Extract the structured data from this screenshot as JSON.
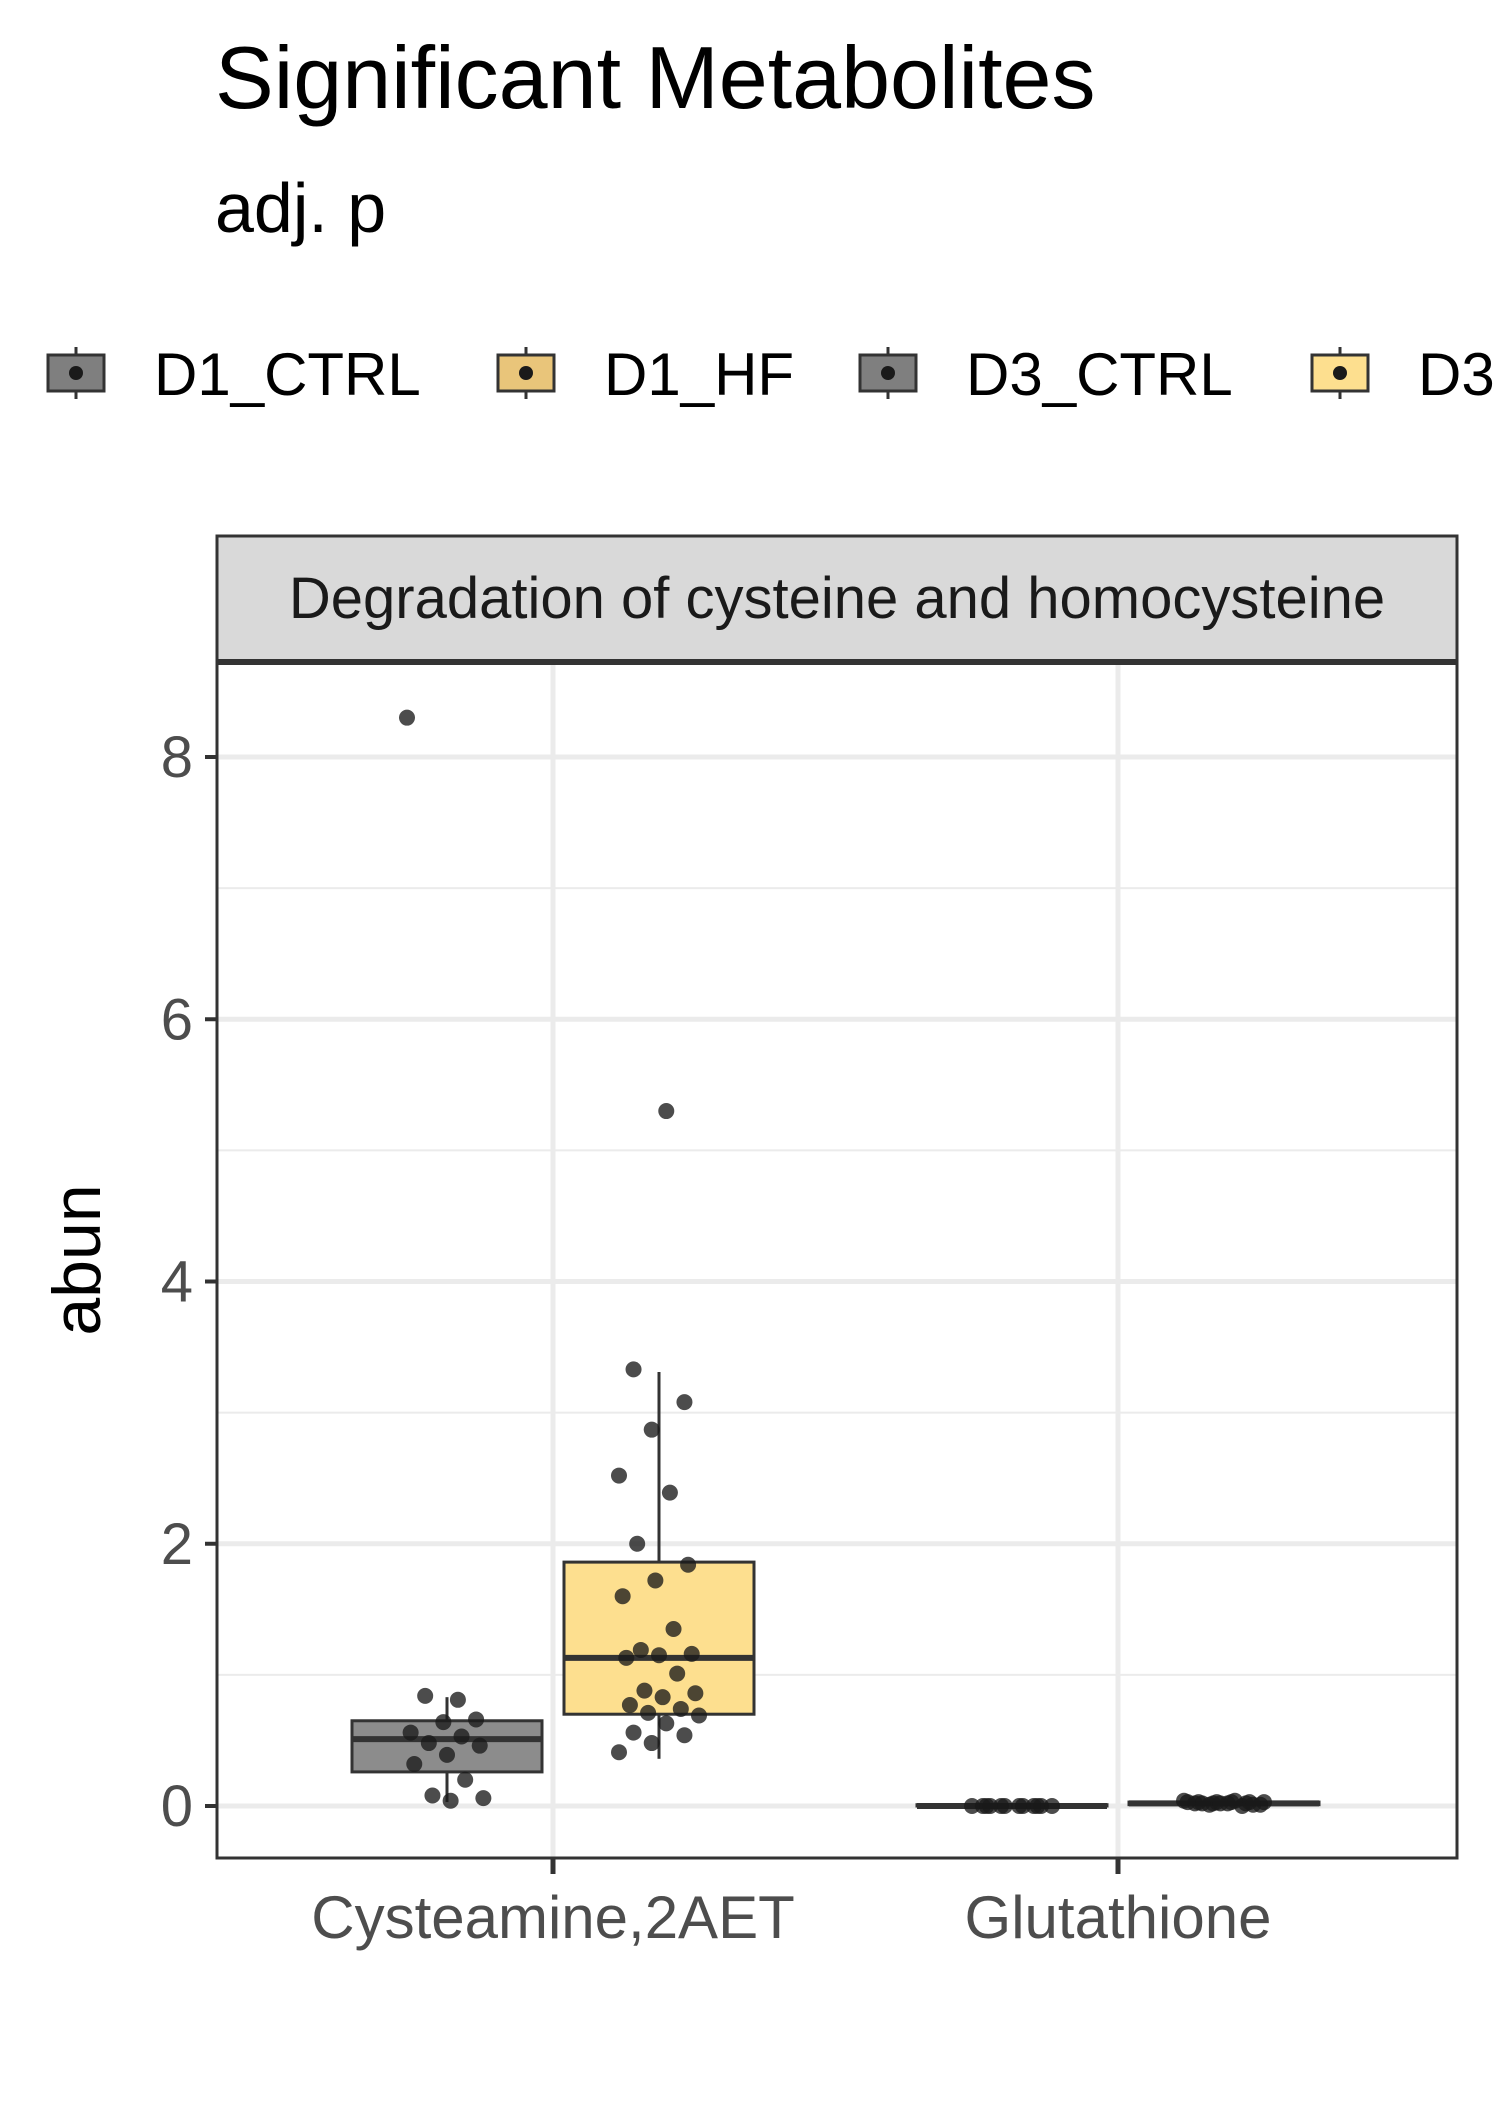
{
  "title": "Significant Metabolites",
  "subtitle": "adj. p",
  "legend": {
    "items": [
      {
        "label": "D1_CTRL",
        "fill": "#7f7f7f"
      },
      {
        "label": "D1_HF",
        "fill": "#e9c57a"
      },
      {
        "label": "D3_CTRL",
        "fill": "#7f7f7f"
      },
      {
        "label": "D3",
        "fill": "#fddf8f"
      }
    ]
  },
  "colors": {
    "ctrl_fill": "#8c8c8c",
    "hf_fill": "#fddf8f",
    "point": "#1a1a1a",
    "grid": "#ebebeb",
    "strip_fill": "#d9d9d9",
    "border": "#333333"
  },
  "chart_data": {
    "type": "box",
    "facet_label": "Degradation of cysteine and homocysteine",
    "xlabel": "",
    "ylabel": "abun",
    "categories": [
      "Cysteamine,2AET",
      "Glutathione"
    ],
    "ylim": [
      -0.4,
      8.7
    ],
    "yticks": [
      0,
      2,
      4,
      6,
      8
    ],
    "grid": true,
    "legend_position": "top",
    "series": [
      {
        "name": "D1_CTRL",
        "category": "Cysteamine,2AET",
        "box": {
          "q1": 0.26,
          "median": 0.51,
          "q3": 0.65,
          "whisker_low": 0.03,
          "whisker_high": 0.83
        },
        "points": [
          8.3,
          0.81,
          0.84,
          0.66,
          0.64,
          0.56,
          0.53,
          0.48,
          0.46,
          0.39,
          0.32,
          0.2,
          0.08,
          0.06,
          0.04
        ]
      },
      {
        "name": "D1_HF",
        "category": "Cysteamine,2AET",
        "box": {
          "q1": 0.7,
          "median": 1.13,
          "q3": 1.86,
          "whisker_low": 0.36,
          "whisker_high": 3.31
        },
        "points": [
          5.3,
          3.33,
          3.08,
          2.87,
          2.52,
          2.39,
          2.0,
          1.84,
          1.72,
          1.6,
          1.35,
          1.19,
          1.16,
          1.15,
          1.13,
          1.01,
          0.88,
          0.86,
          0.83,
          0.77,
          0.74,
          0.71,
          0.69,
          0.63,
          0.56,
          0.54,
          0.48,
          0.41
        ]
      },
      {
        "name": "D3_CTRL",
        "category": "Glutathione",
        "box": {
          "q1": 0.0,
          "median": 0.0,
          "q3": 0.01,
          "whisker_low": 0.0,
          "whisker_high": 0.01
        },
        "points": [
          0.0,
          0.0,
          0.0,
          0.0,
          0.0,
          0.0,
          0.0,
          0.0,
          0.0,
          0.0,
          0.0,
          0.0
        ]
      },
      {
        "name": "D3",
        "category": "Glutathione",
        "box": {
          "q1": 0.01,
          "median": 0.02,
          "q3": 0.03,
          "whisker_low": 0.0,
          "whisker_high": 0.04
        },
        "points": [
          0.0,
          0.01,
          0.01,
          0.02,
          0.02,
          0.02,
          0.02,
          0.03,
          0.03,
          0.03,
          0.03,
          0.03,
          0.04,
          0.04,
          0.02,
          0.01,
          0.02,
          0.03
        ]
      }
    ]
  }
}
